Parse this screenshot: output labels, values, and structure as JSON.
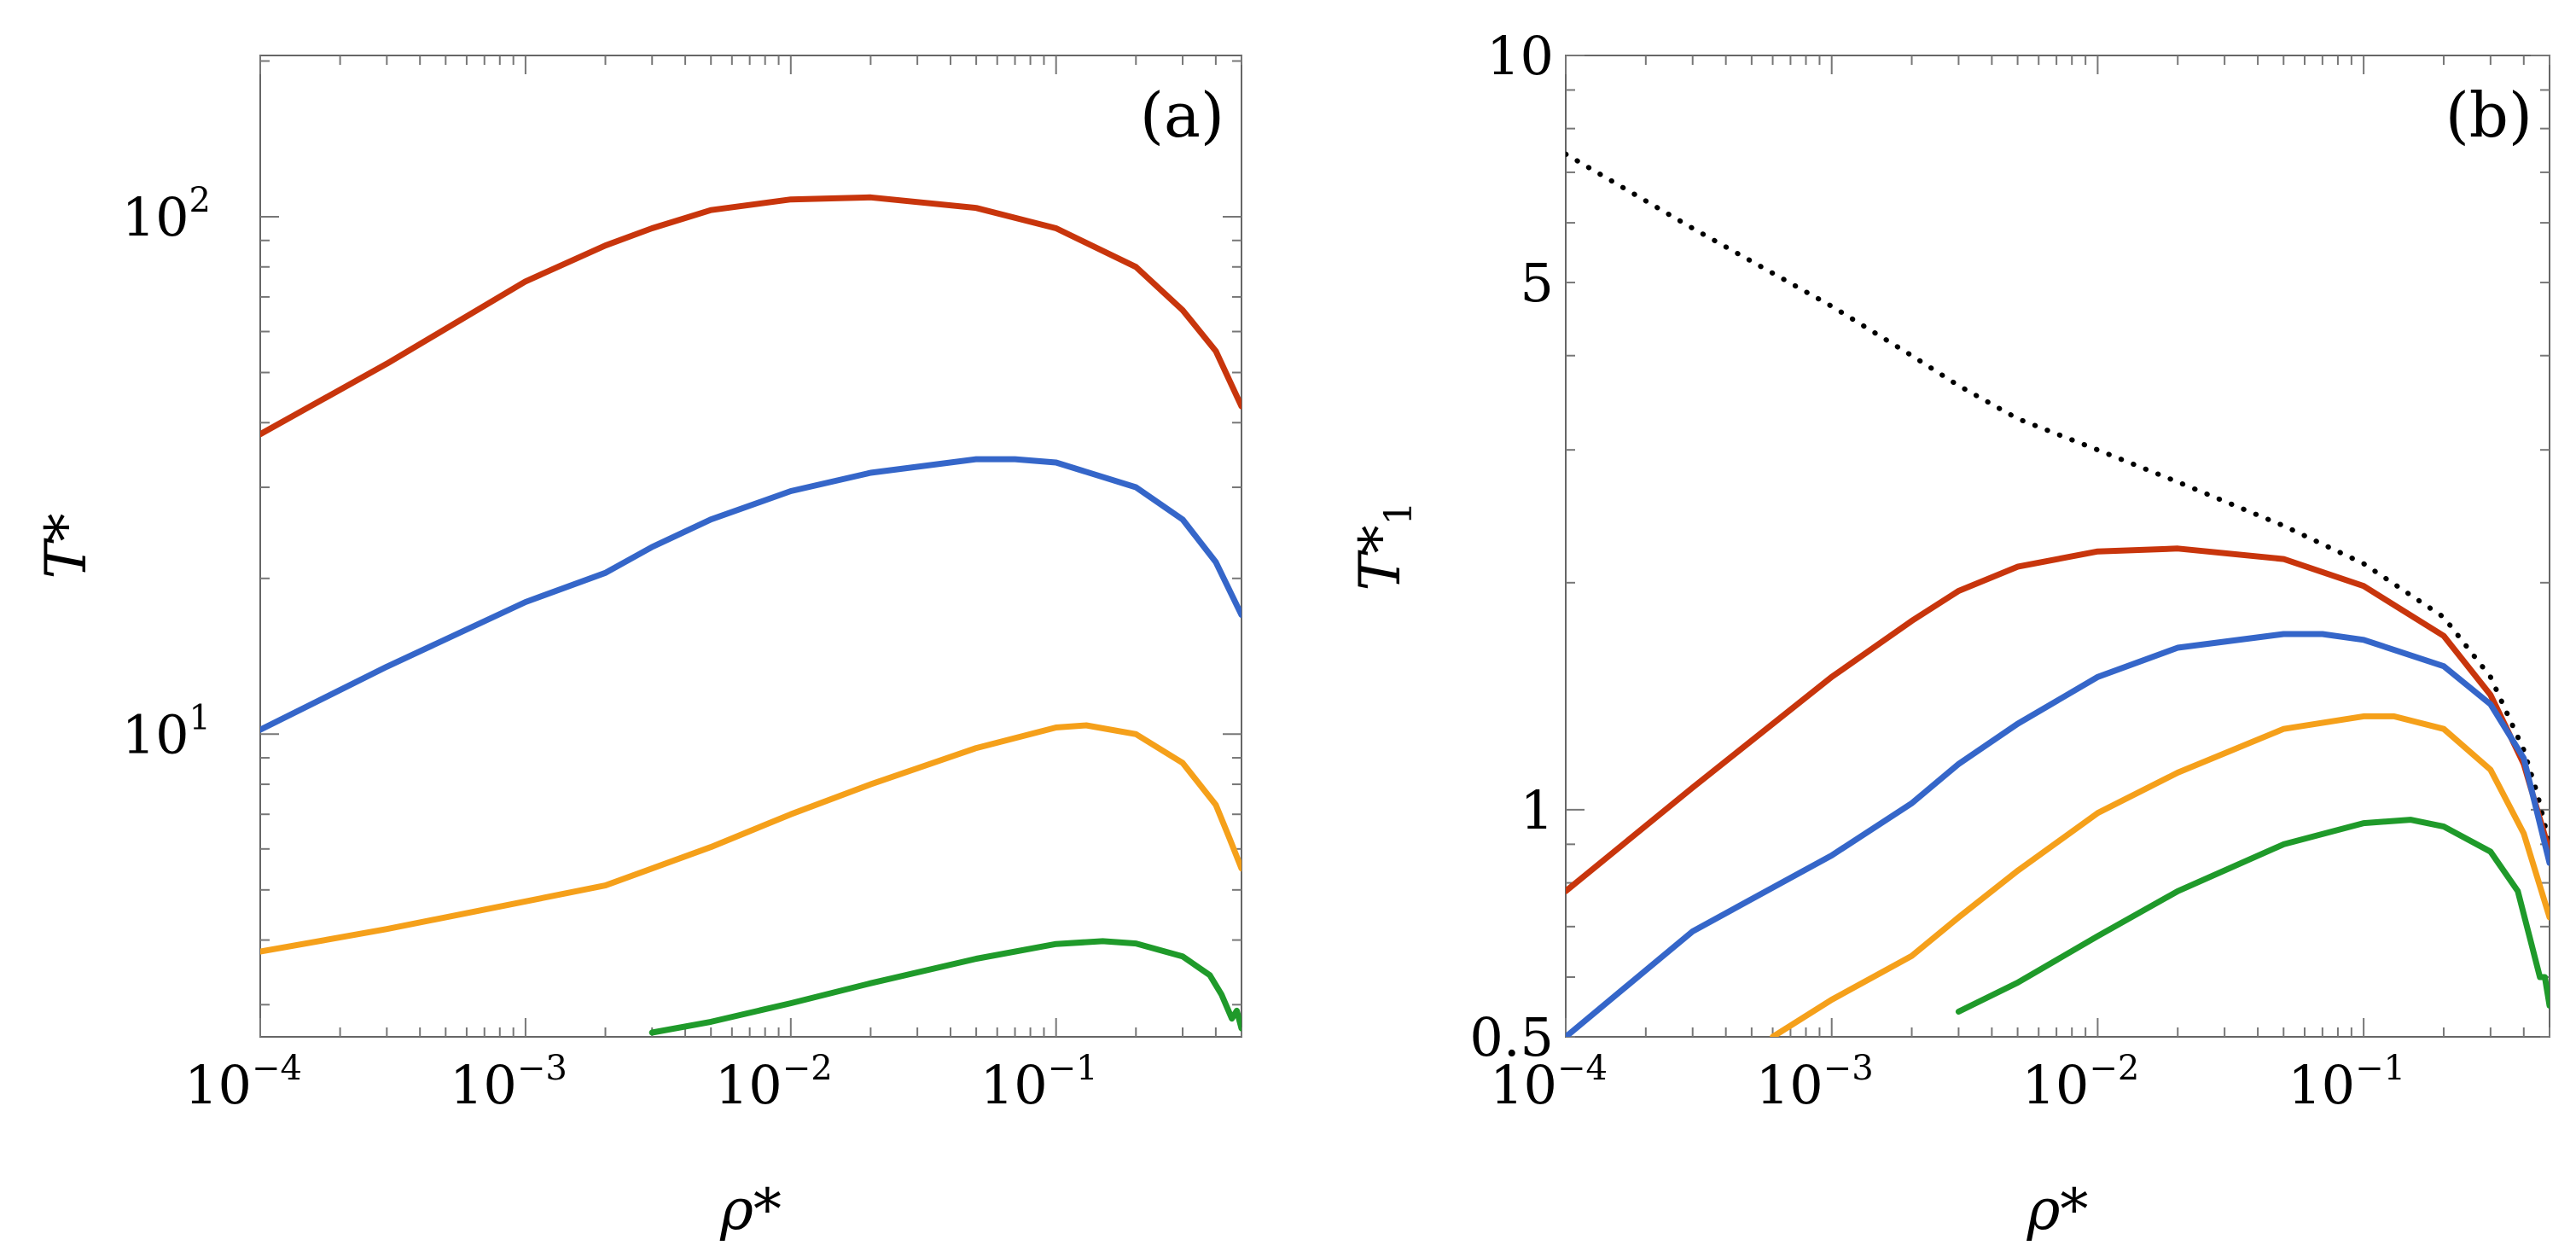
{
  "chart_data": [
    {
      "type": "line",
      "panel_label": "(a)",
      "xlabel": "ρ*",
      "ylabel": "T*",
      "x_scale": "log",
      "y_scale": "log",
      "xlim": [
        0.0001,
        0.5
      ],
      "ylim": [
        2.6,
        205
      ],
      "x_ticks": [
        {
          "value": 0.0001,
          "base": "10",
          "exp": "−4"
        },
        {
          "value": 0.001,
          "base": "10",
          "exp": "−3"
        },
        {
          "value": 0.01,
          "base": "10",
          "exp": "−2"
        },
        {
          "value": 0.1,
          "base": "10",
          "exp": "−1"
        }
      ],
      "y_ticks": [
        {
          "value": 10,
          "base": "10",
          "exp": "1"
        },
        {
          "value": 100,
          "base": "10",
          "exp": "2"
        }
      ],
      "grid": false,
      "legend": "none",
      "series": [
        {
          "color": "#c8350c",
          "style": "solid",
          "x": [
            0.0001,
            0.0003,
            0.001,
            0.002,
            0.003,
            0.005,
            0.01,
            0.02,
            0.05,
            0.1,
            0.2,
            0.3,
            0.4,
            0.5
          ],
          "y": [
            38,
            52,
            75,
            88,
            95,
            103,
            108,
            109,
            104,
            95,
            80,
            66,
            55,
            43
          ]
        },
        {
          "color": "#3566c9",
          "style": "solid",
          "x": [
            0.0001,
            0.0003,
            0.001,
            0.002,
            0.003,
            0.005,
            0.01,
            0.02,
            0.05,
            0.07,
            0.1,
            0.2,
            0.3,
            0.4,
            0.5
          ],
          "y": [
            10.2,
            13.5,
            18,
            20.5,
            23,
            26,
            29.5,
            32,
            34,
            34,
            33.5,
            30,
            26,
            21.5,
            17
          ]
        },
        {
          "color": "#f5a01a",
          "style": "solid",
          "x": [
            0.0001,
            0.0003,
            0.001,
            0.002,
            0.003,
            0.005,
            0.01,
            0.02,
            0.05,
            0.1,
            0.13,
            0.2,
            0.3,
            0.4,
            0.45,
            0.5
          ],
          "y": [
            3.8,
            4.2,
            4.75,
            5.1,
            5.5,
            6.05,
            7.0,
            8.0,
            9.4,
            10.3,
            10.4,
            10.0,
            8.8,
            7.3,
            6.3,
            5.5
          ]
        },
        {
          "color": "#1f9a2a",
          "style": "solid",
          "x": [
            0.003,
            0.005,
            0.01,
            0.02,
            0.05,
            0.1,
            0.15,
            0.2,
            0.3,
            0.38,
            0.42,
            0.46,
            0.48,
            0.5
          ],
          "y": [
            2.65,
            2.78,
            3.02,
            3.3,
            3.68,
            3.93,
            3.98,
            3.94,
            3.72,
            3.42,
            3.14,
            2.82,
            2.92,
            2.7
          ]
        }
      ]
    },
    {
      "type": "line",
      "panel_label": "(b)",
      "xlabel": "ρ*",
      "ylabel": "T*",
      "ylabel_sub": "1",
      "x_scale": "log",
      "y_scale": "log",
      "xlim": [
        0.0001,
        0.5
      ],
      "ylim": [
        0.5,
        10
      ],
      "x_ticks": [
        {
          "value": 0.0001,
          "base": "10",
          "exp": "−4"
        },
        {
          "value": 0.001,
          "base": "10",
          "exp": "−3"
        },
        {
          "value": 0.01,
          "base": "10",
          "exp": "−2"
        },
        {
          "value": 0.1,
          "base": "10",
          "exp": "−1"
        }
      ],
      "y_ticks": [
        {
          "value": 0.5,
          "label": "0.5"
        },
        {
          "value": 1,
          "label": "1"
        },
        {
          "value": 5,
          "label": "5"
        },
        {
          "value": 10,
          "label": "10"
        }
      ],
      "grid": false,
      "legend": "none",
      "series": [
        {
          "color": "#000000",
          "style": "dotted",
          "x": [
            0.0001,
            0.0003,
            0.001,
            0.002,
            0.003,
            0.005,
            0.01,
            0.02,
            0.05,
            0.1,
            0.2,
            0.3,
            0.4,
            0.45,
            0.5
          ],
          "y": [
            7.4,
            5.9,
            4.65,
            4.0,
            3.65,
            3.3,
            3.0,
            2.72,
            2.38,
            2.12,
            1.8,
            1.5,
            1.2,
            1.05,
            0.9
          ]
        },
        {
          "color": "#c8350c",
          "style": "solid",
          "x": [
            0.0001,
            0.0003,
            0.001,
            0.002,
            0.003,
            0.005,
            0.01,
            0.02,
            0.05,
            0.1,
            0.2,
            0.3,
            0.4,
            0.5
          ],
          "y": [
            0.78,
            1.07,
            1.5,
            1.78,
            1.95,
            2.1,
            2.2,
            2.22,
            2.15,
            1.98,
            1.7,
            1.42,
            1.15,
            0.88
          ]
        },
        {
          "color": "#3566c9",
          "style": "solid",
          "x": [
            0.0001,
            0.0003,
            0.001,
            0.002,
            0.003,
            0.005,
            0.01,
            0.02,
            0.05,
            0.07,
            0.1,
            0.2,
            0.3,
            0.4,
            0.5
          ],
          "y": [
            0.5,
            0.69,
            0.87,
            1.02,
            1.15,
            1.3,
            1.5,
            1.64,
            1.71,
            1.71,
            1.68,
            1.55,
            1.38,
            1.17,
            0.85
          ]
        },
        {
          "color": "#f5a01a",
          "style": "solid",
          "x": [
            0.0006,
            0.001,
            0.002,
            0.003,
            0.005,
            0.01,
            0.02,
            0.05,
            0.1,
            0.13,
            0.2,
            0.3,
            0.4,
            0.5
          ],
          "y": [
            0.5,
            0.56,
            0.64,
            0.72,
            0.83,
            0.99,
            1.12,
            1.28,
            1.33,
            1.33,
            1.28,
            1.13,
            0.93,
            0.72
          ]
        },
        {
          "color": "#1f9a2a",
          "style": "solid",
          "x": [
            0.003,
            0.005,
            0.01,
            0.02,
            0.05,
            0.1,
            0.15,
            0.2,
            0.3,
            0.38,
            0.42,
            0.46,
            0.48,
            0.5
          ],
          "y": [
            0.54,
            0.59,
            0.68,
            0.78,
            0.9,
            0.96,
            0.97,
            0.95,
            0.88,
            0.78,
            0.68,
            0.6,
            0.6,
            0.55
          ]
        }
      ]
    }
  ]
}
